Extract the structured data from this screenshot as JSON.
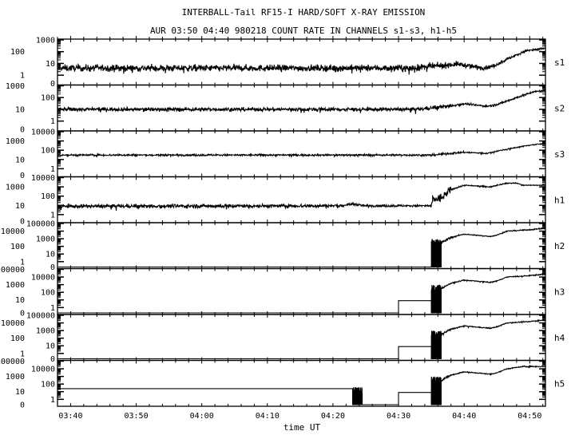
{
  "chart_data": {
    "type": "line",
    "title": "INTERBALL-Tail RF15-I HARD/SOFT X-RAY EMISSION",
    "subtitle": "AUR 03:50 04:40 980218  COUNT RATE IN CHANNELS s1-s3, h1-h5",
    "xlabel": "time UT",
    "x_unit": "minutes after 03:00 UT",
    "xlim": [
      38,
      112.4
    ],
    "xticks": [
      {
        "t": 40,
        "label": "03:40"
      },
      {
        "t": 50,
        "label": "03:50"
      },
      {
        "t": 60,
        "label": "04:00"
      },
      {
        "t": 70,
        "label": "04:10"
      },
      {
        "t": 80,
        "label": "04:20"
      },
      {
        "t": 90,
        "label": "04:30"
      },
      {
        "t": 100,
        "label": "04:40"
      },
      {
        "t": 110,
        "label": "04:50"
      }
    ],
    "yscale": "log (0 at bottom)",
    "series": [
      {
        "name": "s1",
        "ymax_exp": 3,
        "yticks": [
          "1000",
          "100",
          "10",
          "1",
          "0"
        ],
        "points": [
          [
            38,
            4,
            0.14
          ],
          [
            92,
            4,
            0.14
          ],
          [
            96,
            6,
            0.12
          ],
          [
            99,
            9,
            0.1
          ],
          [
            101,
            6,
            0.1
          ],
          [
            103,
            4,
            0.08
          ],
          [
            104.5,
            6,
            0.06
          ],
          [
            107,
            30,
            0.06
          ],
          [
            109.5,
            120,
            0.05
          ],
          [
            111,
            150,
            0.05
          ],
          [
            112.4,
            200,
            0.04
          ]
        ],
        "bursts": []
      },
      {
        "name": "s2",
        "ymax_exp": 3,
        "yticks": [
          "1000",
          "100",
          "10",
          "1",
          "0"
        ],
        "points": [
          [
            38,
            10,
            0.08
          ],
          [
            93,
            10,
            0.08
          ],
          [
            98,
            20,
            0.05
          ],
          [
            100,
            30,
            0.04
          ],
          [
            103.5,
            18,
            0.04
          ],
          [
            105,
            25,
            0.04
          ],
          [
            108,
            100,
            0.04
          ],
          [
            110.5,
            300,
            0.04
          ],
          [
            112.4,
            400,
            0.04
          ]
        ],
        "bursts": []
      },
      {
        "name": "s3",
        "ymax_exp": 4,
        "yticks": [
          "10000",
          "1000",
          "100",
          "10",
          "1",
          "0"
        ],
        "points": [
          [
            38,
            30,
            0.05
          ],
          [
            95,
            30,
            0.05
          ],
          [
            100,
            60,
            0.04
          ],
          [
            103.5,
            45,
            0.03
          ],
          [
            105,
            80,
            0.03
          ],
          [
            108,
            200,
            0.03
          ],
          [
            110.5,
            400,
            0.03
          ],
          [
            112.4,
            500,
            0.03
          ]
        ],
        "bursts": []
      },
      {
        "name": "h1",
        "ymax_exp": 4,
        "yticks": [
          "10000",
          "1000",
          "100",
          "10",
          "1",
          "0"
        ],
        "points": [
          [
            38,
            8,
            0.1
          ],
          [
            81,
            9,
            0.08
          ],
          [
            83,
            14,
            0.06
          ],
          [
            85,
            9,
            0.06
          ],
          [
            95,
            9,
            0.08
          ],
          [
            95.2,
            40,
            0.25
          ],
          [
            96.5,
            60,
            0.2
          ],
          [
            98,
            500,
            0.04
          ],
          [
            100,
            1500,
            0.03
          ],
          [
            104,
            1000,
            0.03
          ],
          [
            105,
            1500,
            0.03
          ],
          [
            106.5,
            2500,
            0.03
          ],
          [
            108,
            2500,
            0.03
          ],
          [
            109,
            1500,
            0.02
          ],
          [
            112.4,
            1500,
            0.02
          ]
        ],
        "bursts": []
      },
      {
        "name": "h2",
        "ymax_exp": 5,
        "yticks": [
          "100000",
          "10000",
          "1000",
          "100",
          "10",
          "1",
          "0"
        ],
        "points": [
          [
            38,
            0,
            0
          ],
          [
            96.5,
            0,
            0
          ],
          [
            96.5,
            300,
            0.08
          ],
          [
            98,
            1500,
            0.04
          ],
          [
            100,
            4000,
            0.03
          ],
          [
            104,
            2000,
            0.03
          ],
          [
            105,
            3000,
            0.03
          ],
          [
            106.5,
            10000,
            0.03
          ],
          [
            110,
            15000,
            0.04
          ],
          [
            112.4,
            25000,
            0.08
          ]
        ],
        "bursts": [
          [
            95,
            96.5,
            1000
          ]
        ]
      },
      {
        "name": "h3",
        "ymax_exp": 5,
        "yticks": [
          "100000",
          "10000",
          "1000",
          "100",
          "10",
          "1",
          "0"
        ],
        "points": [
          [
            38,
            0,
            0
          ],
          [
            90,
            0,
            0
          ],
          [
            90,
            8,
            0
          ],
          [
            95,
            8,
            0
          ],
          [
            95,
            0,
            0
          ],
          [
            96.5,
            0,
            0
          ],
          [
            96.5,
            300,
            0.08
          ],
          [
            98,
            1500,
            0.04
          ],
          [
            100,
            4000,
            0.03
          ],
          [
            104,
            2000,
            0.03
          ],
          [
            105,
            3000,
            0.03
          ],
          [
            106.5,
            10000,
            0.03
          ],
          [
            110,
            15000,
            0.04
          ],
          [
            112.4,
            25000,
            0.1
          ]
        ],
        "bursts": [
          [
            95,
            96.5,
            1000
          ]
        ]
      },
      {
        "name": "h4",
        "ymax_exp": 5,
        "yticks": [
          "100000",
          "10000",
          "1000",
          "100",
          "10",
          "1",
          "0"
        ],
        "points": [
          [
            38,
            0,
            0
          ],
          [
            90,
            0,
            0
          ],
          [
            90,
            8,
            0
          ],
          [
            95,
            8,
            0
          ],
          [
            95,
            0,
            0
          ],
          [
            96.5,
            0,
            0
          ],
          [
            96.5,
            300,
            0.08
          ],
          [
            98,
            1500,
            0.04
          ],
          [
            100,
            4000,
            0.03
          ],
          [
            104,
            2000,
            0.03
          ],
          [
            105,
            3000,
            0.03
          ],
          [
            106.5,
            10000,
            0.03
          ],
          [
            110,
            15000,
            0.04
          ],
          [
            112.4,
            25000,
            0.1
          ]
        ],
        "bursts": [
          [
            95,
            96.5,
            1000
          ]
        ]
      },
      {
        "name": "h5",
        "ymax_exp": 5,
        "yticks": [
          "100000",
          "10000",
          "1000",
          "100",
          "10",
          "1",
          "0"
        ],
        "points": [
          [
            38,
            25,
            0
          ],
          [
            83,
            25,
            0
          ],
          [
            83,
            0,
            0
          ],
          [
            90,
            0,
            0
          ],
          [
            90,
            8,
            0
          ],
          [
            95,
            8,
            0
          ],
          [
            95,
            0,
            0
          ],
          [
            96.5,
            0,
            0
          ],
          [
            96.5,
            300,
            0.08
          ],
          [
            98,
            1500,
            0.04
          ],
          [
            100,
            4000,
            0.03
          ],
          [
            104,
            2000,
            0.03
          ],
          [
            105,
            3000,
            0.03
          ],
          [
            106.5,
            10000,
            0.03
          ],
          [
            109,
            20000,
            0.04
          ],
          [
            112.4,
            20000,
            0.03
          ]
        ],
        "bursts": [
          [
            83,
            84.5,
            40
          ],
          [
            95,
            96.5,
            1000
          ]
        ]
      }
    ]
  }
}
